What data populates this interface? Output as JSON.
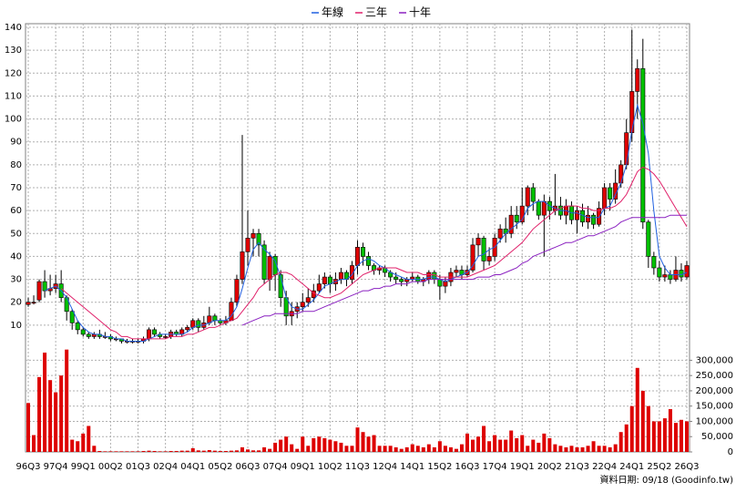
{
  "chart_data": {
    "type": "candlestick",
    "source": "資料日期: 09/18 (Goodinfo.tw)",
    "categories": [
      "96Q3",
      null,
      null,
      null,
      null,
      "97Q4",
      null,
      null,
      null,
      null,
      "99Q1",
      null,
      null,
      null,
      null,
      "00Q2",
      null,
      null,
      null,
      null,
      "01Q3",
      null,
      null,
      null,
      null,
      "02Q4",
      null,
      null,
      null,
      null,
      "04Q1",
      null,
      null,
      null,
      null,
      "05Q2",
      null,
      null,
      null,
      null,
      "06Q3",
      null,
      null,
      null,
      null,
      "07Q4",
      null,
      null,
      null,
      null,
      "09Q1",
      null,
      null,
      null,
      null,
      "10Q2",
      null,
      null,
      null,
      null,
      "11Q3",
      null,
      null,
      null,
      null,
      "12Q4",
      null,
      null,
      null,
      null,
      "14Q1",
      null,
      null,
      null,
      null,
      "15Q2",
      null,
      null,
      null,
      null,
      "16Q3",
      null,
      null,
      null,
      null,
      "17Q4",
      null,
      null,
      null,
      null,
      "19Q1",
      null,
      null,
      null,
      null,
      "20Q2",
      null,
      null,
      null,
      null,
      "21Q3",
      null,
      null,
      null,
      null,
      "22Q4",
      null,
      null,
      null,
      null,
      "24Q1",
      null,
      null,
      null,
      null,
      "25Q2",
      null,
      null,
      null,
      null,
      "26Q3"
    ],
    "open": [
      19,
      20,
      21,
      29,
      25,
      26,
      28,
      22,
      16,
      11,
      8,
      6,
      5,
      6,
      5,
      5,
      4,
      4,
      3,
      3,
      3,
      3,
      4,
      8,
      6,
      5,
      5,
      7,
      6,
      8,
      9,
      12,
      9,
      11,
      14,
      12,
      11,
      12,
      20,
      30,
      42,
      48,
      50,
      45,
      30,
      40,
      32,
      22,
      14,
      16,
      18,
      20,
      22,
      25,
      28,
      31,
      28,
      30,
      33,
      30,
      36,
      44,
      40,
      36,
      34,
      35,
      33,
      31,
      30,
      29,
      30,
      31,
      29,
      30,
      33,
      30,
      27,
      29,
      33,
      34,
      32,
      34,
      45,
      48,
      38,
      40,
      48,
      52,
      50,
      58,
      55,
      62,
      70,
      64,
      58,
      64,
      60,
      62,
      58,
      62,
      56,
      60,
      55,
      58,
      54,
      61,
      70,
      65,
      72,
      80,
      94,
      112,
      122,
      55,
      40,
      35,
      31,
      32,
      30,
      34,
      31
    ],
    "close": [
      20,
      20,
      29,
      25,
      26,
      28,
      22,
      16,
      11,
      8,
      6,
      5,
      6,
      5,
      5,
      4,
      4,
      3,
      3,
      3,
      3,
      4,
      8,
      6,
      5,
      5,
      7,
      6,
      8,
      9,
      12,
      9,
      11,
      14,
      12,
      11,
      12,
      20,
      30,
      42,
      48,
      50,
      45,
      30,
      40,
      32,
      22,
      14,
      16,
      18,
      20,
      22,
      25,
      28,
      31,
      28,
      30,
      33,
      30,
      36,
      44,
      40,
      36,
      34,
      35,
      33,
      31,
      30,
      29,
      30,
      31,
      29,
      30,
      33,
      30,
      27,
      29,
      33,
      34,
      32,
      34,
      45,
      48,
      38,
      40,
      48,
      52,
      50,
      58,
      55,
      62,
      70,
      64,
      58,
      64,
      60,
      62,
      58,
      62,
      56,
      60,
      55,
      58,
      54,
      61,
      70,
      65,
      72,
      80,
      94,
      112,
      122,
      55,
      40,
      35,
      31,
      32,
      30,
      34,
      31,
      36
    ],
    "high": [
      22,
      23,
      30,
      34,
      32,
      32,
      34,
      23,
      17,
      12,
      9,
      7,
      7,
      8,
      7,
      6,
      5,
      4,
      4,
      4,
      4,
      5,
      9,
      9,
      7,
      6,
      8,
      8,
      9,
      10,
      13,
      13,
      14,
      18,
      15,
      13,
      14,
      22,
      32,
      93,
      60,
      52,
      52,
      47,
      42,
      41,
      34,
      25,
      20,
      20,
      24,
      26,
      28,
      32,
      33,
      32,
      33,
      35,
      34,
      38,
      47,
      46,
      42,
      37,
      36,
      36,
      34,
      33,
      31,
      31,
      33,
      32,
      31,
      34,
      34,
      32,
      31,
      35,
      36,
      36,
      36,
      48,
      50,
      49,
      44,
      50,
      54,
      57,
      62,
      62,
      70,
      71,
      72,
      65,
      67,
      66,
      76,
      66,
      65,
      64,
      62,
      63,
      62,
      59,
      64,
      72,
      72,
      78,
      82,
      100,
      139,
      126,
      135,
      56,
      42,
      38,
      36,
      34,
      40,
      37,
      38
    ],
    "low": [
      18,
      19,
      20,
      22,
      23,
      24,
      20,
      12,
      8,
      6,
      5,
      4,
      4,
      4,
      4,
      3,
      3,
      2,
      2,
      2,
      2,
      2,
      3,
      5,
      4,
      4,
      4,
      5,
      5,
      7,
      8,
      7,
      8,
      10,
      10,
      10,
      10,
      12,
      18,
      28,
      36,
      40,
      40,
      28,
      25,
      25,
      18,
      10,
      10,
      13,
      16,
      18,
      20,
      24,
      26,
      24,
      25,
      28,
      27,
      28,
      32,
      36,
      34,
      32,
      32,
      31,
      29,
      28,
      27,
      27,
      29,
      28,
      27,
      28,
      28,
      21,
      24,
      27,
      31,
      30,
      31,
      33,
      40,
      34,
      36,
      38,
      46,
      46,
      48,
      52,
      54,
      58,
      60,
      56,
      40,
      56,
      58,
      56,
      54,
      54,
      50,
      53,
      52,
      52,
      53,
      58,
      60,
      63,
      70,
      78,
      90,
      100,
      52,
      35,
      32,
      29,
      29,
      28,
      29,
      29,
      30
    ],
    "up_color": "#e00000",
    "down_color": "#00c000",
    "series": [
      {
        "name": "年線",
        "color": "#2060e0",
        "values": [
          null,
          null,
          null,
          25,
          26,
          27,
          25,
          22,
          17,
          12,
          9,
          7,
          6,
          6,
          5,
          5,
          4,
          4,
          3,
          3,
          3,
          3,
          4,
          5,
          6,
          6,
          6,
          6,
          6,
          7,
          9,
          10,
          10,
          11,
          12,
          12,
          12,
          14,
          18,
          26,
          35,
          43,
          46,
          43,
          41,
          38,
          31,
          22,
          18,
          17,
          17,
          19,
          21,
          24,
          27,
          28,
          29,
          30,
          30,
          32,
          36,
          38,
          39,
          38,
          36,
          35,
          33,
          32,
          31,
          30,
          30,
          30,
          30,
          31,
          31,
          30,
          29,
          30,
          31,
          32,
          33,
          36,
          40,
          41,
          43,
          44,
          47,
          50,
          52,
          54,
          56,
          61,
          63,
          64,
          64,
          62,
          61,
          60,
          60,
          59,
          59,
          58,
          57,
          57,
          57,
          61,
          62,
          67,
          72,
          80,
          95,
          106,
          98,
          85,
          60,
          40,
          35,
          32,
          32,
          32,
          33
        ]
      },
      {
        "name": "三年",
        "color": "#e0206a",
        "values": [
          null,
          null,
          null,
          null,
          null,
          null,
          26,
          24,
          22,
          20,
          18,
          16,
          14,
          12,
          10,
          8,
          7,
          5,
          5,
          4,
          4,
          4,
          4,
          4,
          4,
          4,
          5,
          5,
          5,
          6,
          6,
          7,
          8,
          9,
          9,
          10,
          11,
          12,
          13,
          16,
          19,
          22,
          26,
          28,
          30,
          32,
          33,
          33,
          32,
          30,
          28,
          26,
          24,
          23,
          22,
          22,
          23,
          24,
          26,
          28,
          30,
          32,
          33,
          34,
          35,
          35,
          35,
          35,
          34,
          33,
          33,
          33,
          32,
          32,
          32,
          31,
          31,
          31,
          31,
          31,
          31,
          32,
          33,
          34,
          35,
          36,
          38,
          40,
          42,
          44,
          46,
          49,
          52,
          54,
          56,
          58,
          60,
          61,
          62,
          62,
          62,
          61,
          61,
          60,
          60,
          61,
          61,
          62,
          64,
          67,
          72,
          77,
          79,
          78,
          76,
          73,
          69,
          65,
          61,
          57,
          53
        ]
      },
      {
        "name": "十年",
        "color": "#8a20c0",
        "values": [
          null,
          null,
          null,
          null,
          null,
          null,
          null,
          null,
          null,
          null,
          null,
          null,
          null,
          null,
          null,
          null,
          null,
          null,
          null,
          null,
          null,
          null,
          null,
          null,
          null,
          null,
          null,
          null,
          null,
          null,
          null,
          null,
          null,
          null,
          null,
          null,
          null,
          null,
          null,
          10,
          11,
          12,
          13,
          14,
          14,
          15,
          15,
          15,
          15,
          15,
          16,
          16,
          16,
          17,
          18,
          19,
          20,
          21,
          22,
          23,
          24,
          25,
          25,
          26,
          26,
          27,
          27,
          28,
          28,
          28,
          29,
          29,
          29,
          30,
          30,
          30,
          30,
          30,
          30,
          30,
          30,
          30,
          31,
          31,
          31,
          32,
          32,
          33,
          34,
          35,
          37,
          38,
          40,
          41,
          42,
          43,
          44,
          45,
          46,
          46,
          47,
          48,
          49,
          49,
          50,
          51,
          52,
          53,
          55,
          56,
          57,
          57,
          57,
          57,
          57,
          57,
          57,
          58,
          58,
          58,
          58
        ]
      }
    ],
    "ylim": [
      0,
      140
    ],
    "yticks": [
      10,
      20,
      30,
      40,
      50,
      60,
      70,
      80,
      90,
      100,
      110,
      120,
      130,
      140
    ],
    "volume": {
      "color": "#dd0000",
      "values": [
        160000,
        55000,
        245000,
        325000,
        235000,
        195000,
        250000,
        335000,
        40000,
        35000,
        60000,
        85000,
        20000,
        3000,
        2000,
        2000,
        2000,
        2000,
        2000,
        2000,
        2000,
        3000,
        4000,
        3000,
        2000,
        2000,
        3000,
        3000,
        4000,
        4000,
        12000,
        5000,
        4000,
        6000,
        4000,
        3000,
        3000,
        4000,
        5000,
        15000,
        8000,
        5000,
        5000,
        15000,
        10000,
        30000,
        40000,
        50000,
        25000,
        10000,
        50000,
        20000,
        45000,
        50000,
        45000,
        40000,
        35000,
        30000,
        20000,
        20000,
        80000,
        65000,
        50000,
        55000,
        20000,
        20000,
        20000,
        15000,
        10000,
        15000,
        25000,
        20000,
        15000,
        25000,
        15000,
        35000,
        20000,
        15000,
        10000,
        25000,
        60000,
        40000,
        50000,
        85000,
        35000,
        55000,
        40000,
        40000,
        70000,
        45000,
        55000,
        20000,
        40000,
        30000,
        60000,
        45000,
        25000,
        20000,
        15000,
        20000,
        15000,
        15000,
        20000,
        35000,
        20000,
        20000,
        15000,
        25000,
        65000,
        90000,
        150000,
        275000,
        200000,
        150000,
        100000,
        100000,
        110000,
        140000,
        95000,
        105000,
        100000
      ],
      "ylim": [
        0,
        340000
      ],
      "yticks": [
        0,
        {
          "value": 50000,
          "label": "50,000"
        },
        {
          "value": 100000,
          "label": "100,000"
        },
        {
          "value": 150000,
          "label": "150,000"
        },
        {
          "value": 200000,
          "label": "200,000"
        },
        {
          "value": 250000,
          "label": "250,000"
        },
        {
          "value": 300000,
          "label": "300,000"
        }
      ]
    },
    "grid": true
  }
}
